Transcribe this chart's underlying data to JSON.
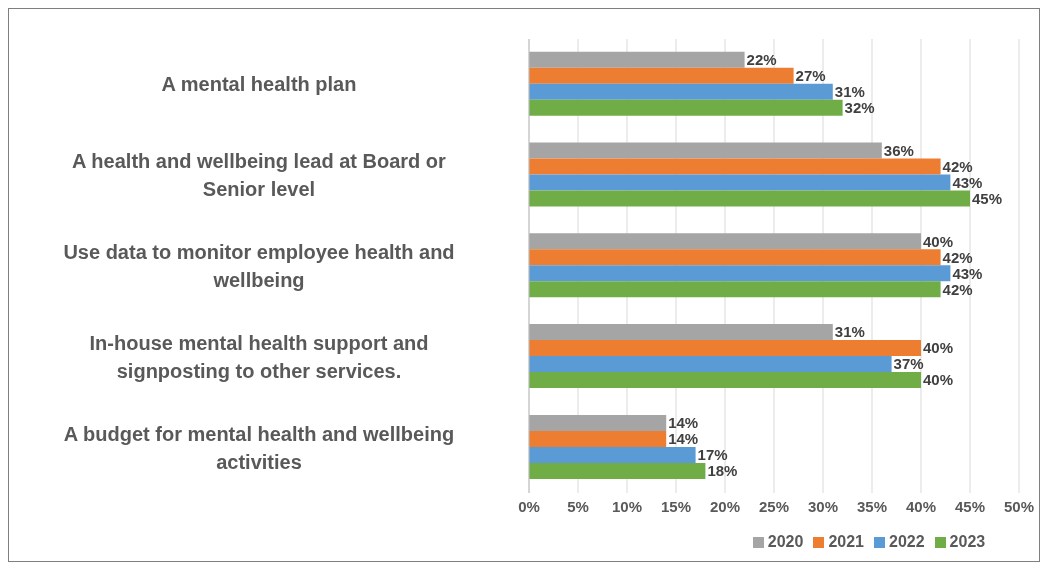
{
  "chart_data": {
    "type": "bar",
    "orientation": "horizontal",
    "categories": [
      "A mental health plan",
      "A health and wellbeing lead at Board or Senior level",
      "Use data to monitor employee health and wellbeing",
      "In-house mental health support and signposting to other services.",
      "A budget for mental health and wellbeing activities"
    ],
    "series": [
      {
        "name": "2020",
        "color": "#a5a5a5",
        "values": [
          22,
          36,
          40,
          31,
          14
        ],
        "value_labels": [
          "22%",
          "36%",
          "40%",
          "31%",
          "14%"
        ]
      },
      {
        "name": "2021",
        "color": "#ed7d31",
        "values": [
          27,
          42,
          42,
          40,
          14
        ],
        "value_labels": [
          "27%",
          "42%",
          "42%",
          "40%",
          "14%"
        ]
      },
      {
        "name": "2022",
        "color": "#5b9bd5",
        "values": [
          31,
          43,
          43,
          37,
          17
        ],
        "value_labels": [
          "31%",
          "43%",
          "43%",
          "37%",
          "17%"
        ]
      },
      {
        "name": "2023",
        "color": "#70ad47",
        "values": [
          32,
          45,
          42,
          40,
          18
        ],
        "value_labels": [
          "32%",
          "45%",
          "42%",
          "40%",
          "18%"
        ]
      }
    ],
    "xlim": [
      0,
      50
    ],
    "xticks": [
      {
        "value": 0,
        "label": "0%"
      },
      {
        "value": 5,
        "label": "5%"
      },
      {
        "value": 10,
        "label": "10%"
      },
      {
        "value": 15,
        "label": "15%"
      },
      {
        "value": 20,
        "label": "20%"
      },
      {
        "value": 25,
        "label": "25%"
      },
      {
        "value": 30,
        "label": "30%"
      },
      {
        "value": 35,
        "label": "35%"
      },
      {
        "value": 40,
        "label": "40%"
      },
      {
        "value": 45,
        "label": "45%"
      },
      {
        "value": 50,
        "label": "50%"
      }
    ],
    "grid": "x",
    "legend": "bottom"
  }
}
